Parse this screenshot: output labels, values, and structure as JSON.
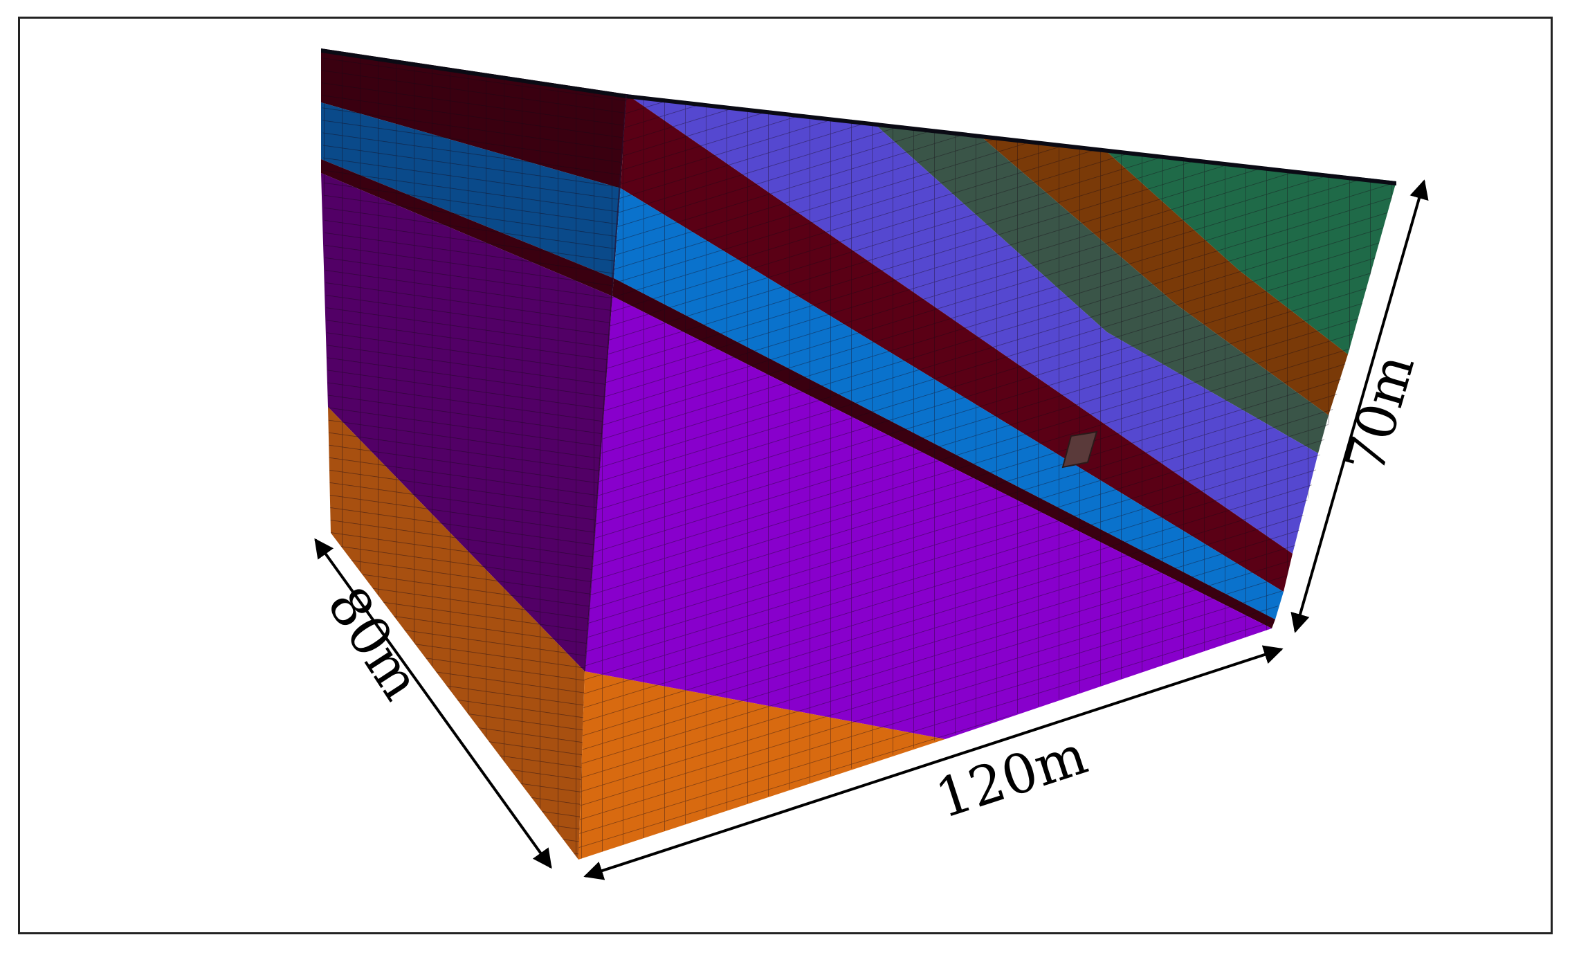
{
  "dimensions": {
    "length": "120m",
    "width": "80m",
    "height": "70m"
  },
  "colors": {
    "mesh_line": "#1a1020",
    "dark_red": "#3a0010",
    "crimson": "#5a0015",
    "blue": "#0a72cc",
    "blue_dark": "#0a4a8a",
    "purple": "#8800cc",
    "purple_dark": "#520066",
    "slate_blue": "#5548d0",
    "gray_green": "#3a5548",
    "brown": "#7a3a08",
    "green": "#1f6a48",
    "orange": "#d86a10",
    "orange_dark": "#a85010"
  }
}
